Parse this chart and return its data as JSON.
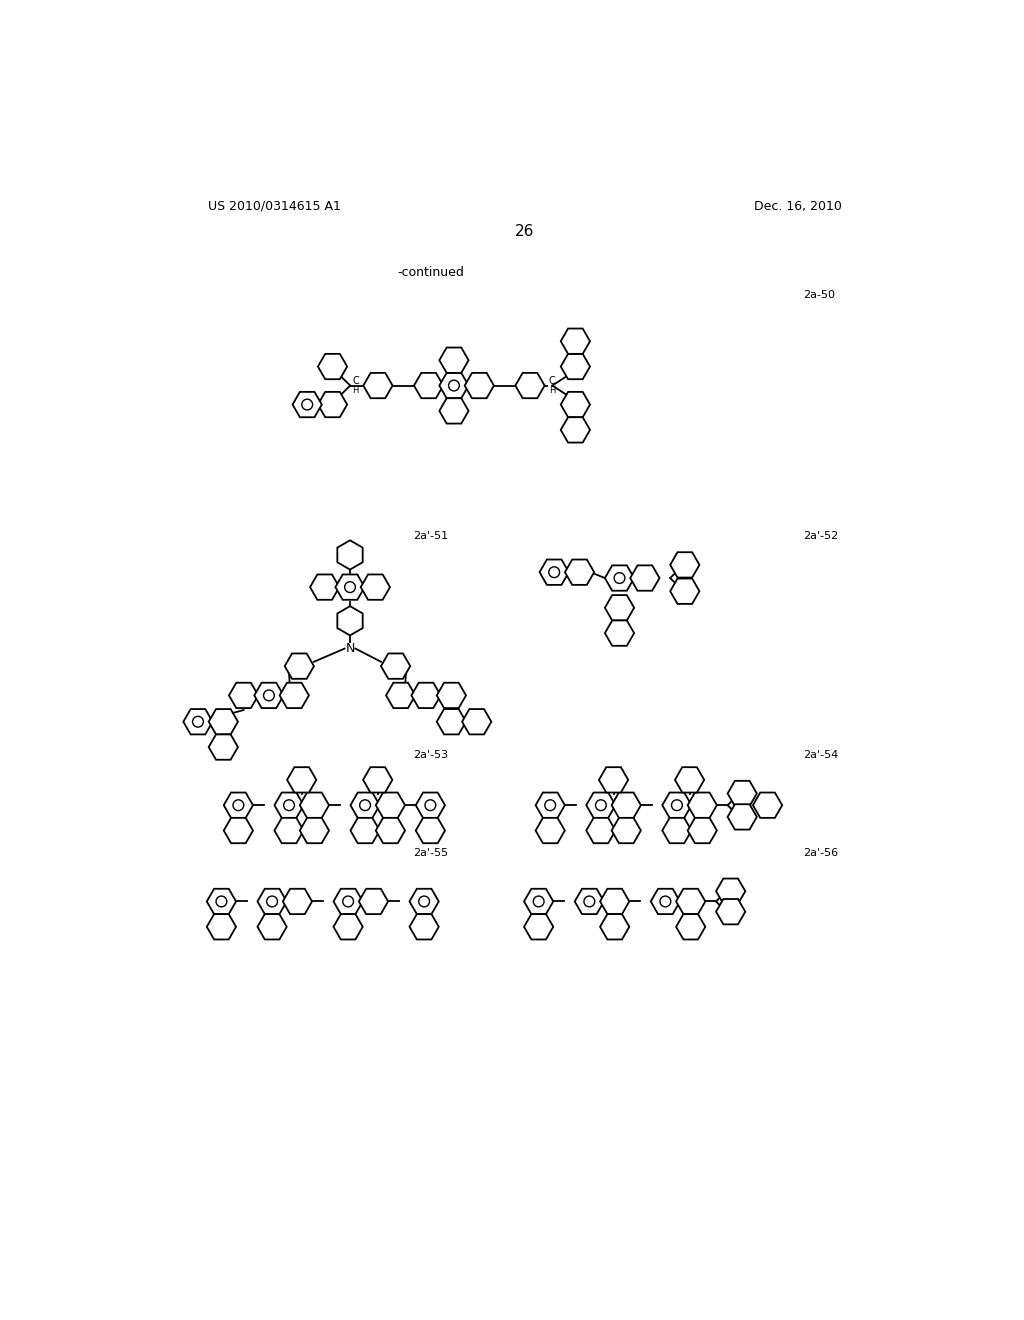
{
  "background_color": "#ffffff",
  "page_number": "26",
  "header_left": "US 2010/0314615 A1",
  "header_right": "Dec. 16, 2010",
  "continued_text": "-continued"
}
